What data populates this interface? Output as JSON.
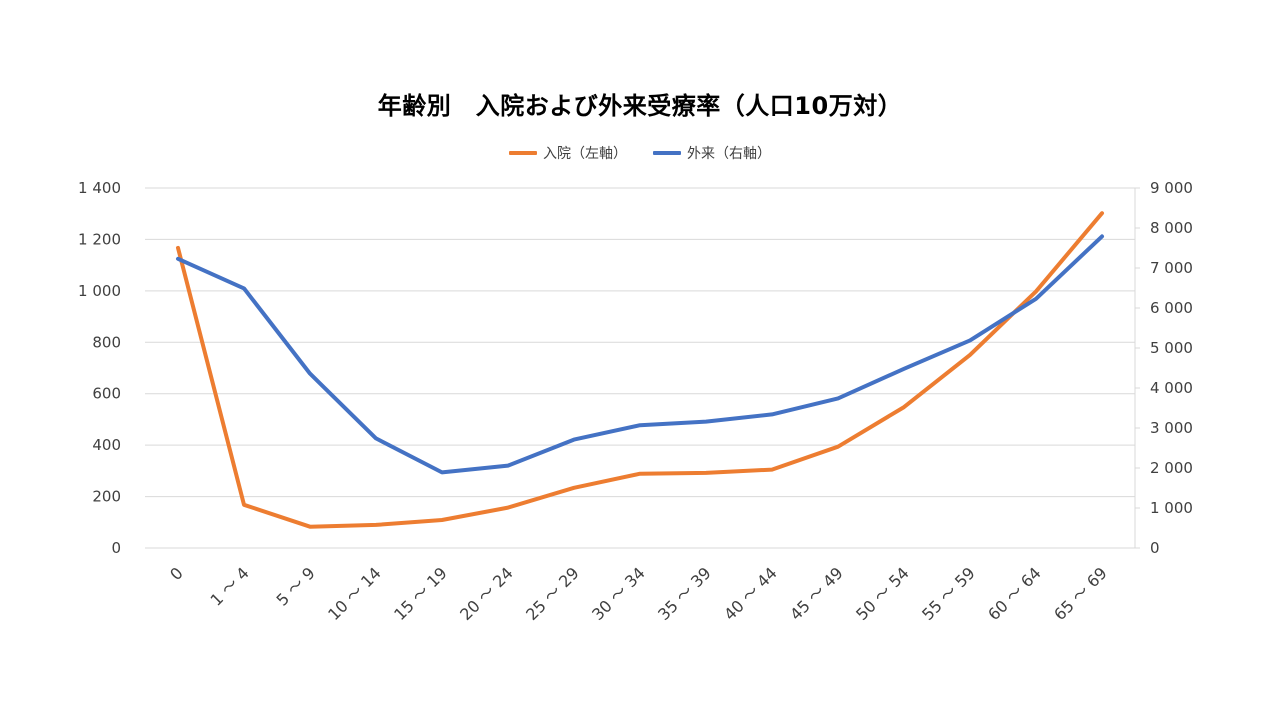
{
  "chart_data": {
    "type": "line",
    "title": "年齢別　入院および外来受療率（人口10万対）",
    "categories": [
      "0",
      "1 ～ 4",
      "5 ～ 9",
      "10 ～ 14",
      "15 ～ 19",
      "20 ～ 24",
      "25 ～ 29",
      "30 ～ 34",
      "35 ～ 39",
      "40 ～ 44",
      "45 ～ 49",
      "50 ～ 54",
      "55 ～ 59",
      "60 ～ 64",
      "65 ～ 69"
    ],
    "series": [
      {
        "name": "入院（左軸）",
        "axis": "left",
        "color": "#ED7D31",
        "values": [
          1167,
          168,
          83,
          90,
          109,
          157,
          234,
          289,
          292,
          305,
          394,
          548,
          751,
          998,
          1302
        ]
      },
      {
        "name": "外来（右軸）",
        "axis": "right",
        "color": "#4472C4",
        "values": [
          7230,
          6490,
          4360,
          2740,
          1890,
          2060,
          2710,
          3070,
          3160,
          3340,
          3740,
          4480,
          5190,
          6230,
          7790
        ]
      }
    ],
    "y_left": {
      "ylim": [
        0,
        1400
      ],
      "ticks": [
        0,
        200,
        400,
        600,
        800,
        1000,
        1200,
        1400
      ],
      "tick_labels": [
        "0",
        "200",
        "400",
        "600",
        "800",
        "1 000",
        "1 200",
        "1 400"
      ]
    },
    "y_right": {
      "ylim": [
        0,
        9000
      ],
      "ticks": [
        0,
        1000,
        2000,
        3000,
        4000,
        5000,
        6000,
        7000,
        8000,
        9000
      ],
      "tick_labels": [
        "0",
        "1 000",
        "2 000",
        "3 000",
        "4 000",
        "5 000",
        "6 000",
        "7 000",
        "8 000",
        "9 000"
      ]
    },
    "grid": true,
    "legend_position": "top-center",
    "gridline_color": "#D9D9D9"
  }
}
